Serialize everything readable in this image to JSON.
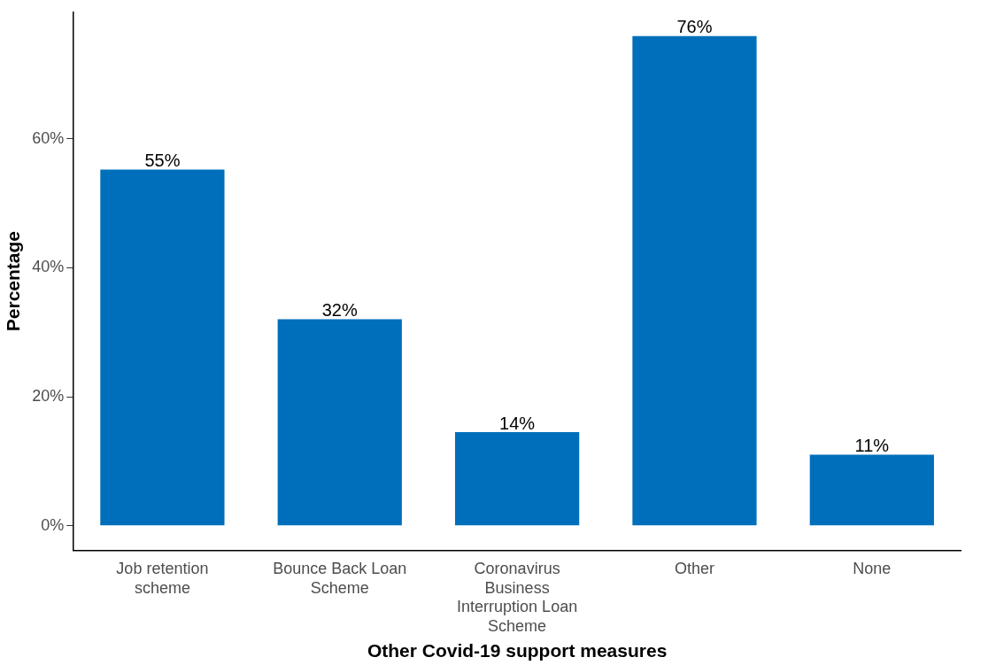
{
  "chart_data": {
    "type": "bar",
    "xlabel": "Other Covid-19 support measures",
    "ylabel": "Percentage",
    "categories": [
      "Job retention scheme",
      "Bounce Back Loan Scheme",
      "Coronavirus Business Interruption Loan Scheme",
      "Other",
      "None"
    ],
    "values": [
      55.2,
      32,
      14.5,
      75.9,
      11
    ],
    "value_labels": [
      "55%",
      "32%",
      "14%",
      "76%",
      "11%"
    ],
    "color": "#006fbb",
    "ylim": [
      -3.8,
      79.6
    ],
    "yticks": [
      {
        "value": 0,
        "label": "0%"
      },
      {
        "value": 20,
        "label": "20%"
      },
      {
        "value": 40,
        "label": "40%"
      },
      {
        "value": 60,
        "label": "60%"
      }
    ],
    "grid": false,
    "legend": false
  }
}
